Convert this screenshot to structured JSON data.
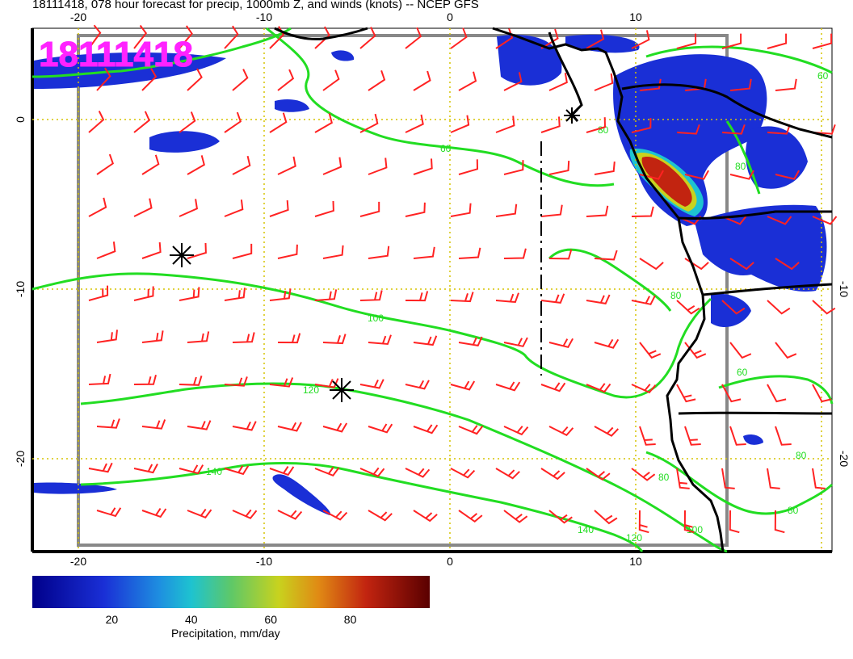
{
  "title": "18111418, 078 hour forecast for precip, 1000mb Z, and winds (knots) -- NCEP GFS",
  "stamp": "18111418",
  "axes": {
    "lon_ticks": [
      "-20",
      "-10",
      "0",
      "10"
    ],
    "lat_ticks": [
      "0",
      "-10",
      "-20"
    ]
  },
  "contours": {
    "labels": [
      "60",
      "60",
      "80",
      "80",
      "80",
      "100",
      "100",
      "120",
      "120",
      "140",
      "140",
      "80",
      "80",
      "60",
      "80"
    ]
  },
  "colorbar": {
    "title": "Precipitation, mm/day",
    "tick_labels": [
      "20",
      "40",
      "60",
      "80"
    ],
    "tick_values": [
      20,
      40,
      60,
      80
    ],
    "range": [
      0,
      100
    ]
  },
  "colors": {
    "barbs": "#ff2222",
    "contours": "#22dd22",
    "stamp": "#ff22ff",
    "coast": "#000000"
  }
}
